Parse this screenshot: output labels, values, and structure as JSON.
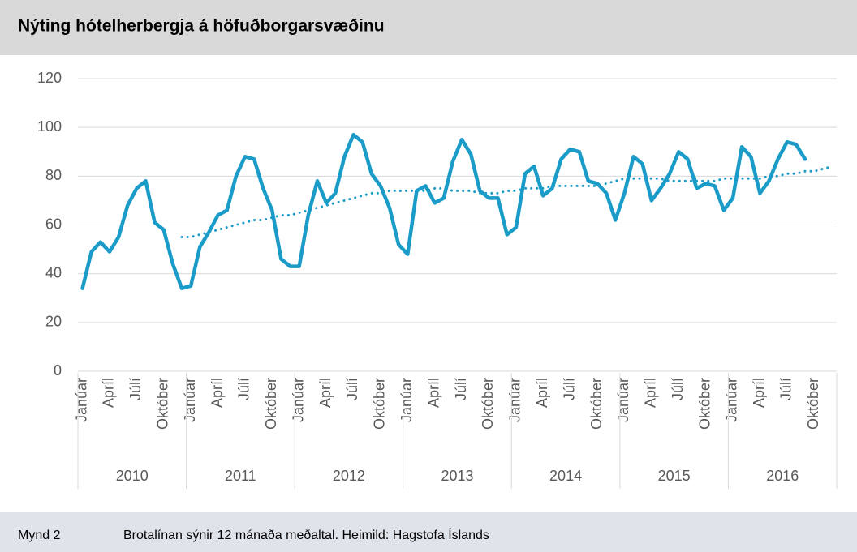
{
  "chart_data": {
    "type": "line",
    "title": "Nýting hótelherbergja á höfuðborgarsvæðinu",
    "categories": [
      "Janúar",
      null,
      null,
      "Apríl",
      null,
      null,
      "Júlí",
      null,
      null,
      "Október",
      null,
      null,
      "Janúar",
      null,
      null,
      "Apríl",
      null,
      null,
      "Júlí",
      null,
      null,
      "Október",
      null,
      null,
      "Janúar",
      null,
      null,
      "Apríl",
      null,
      null,
      "Júlí",
      null,
      null,
      "Október",
      null,
      null,
      "Janúar",
      null,
      null,
      "Apríl",
      null,
      null,
      "Júlí",
      null,
      null,
      "Október",
      null,
      null,
      "Janúar",
      null,
      null,
      "Apríl",
      null,
      null,
      "Júlí",
      null,
      null,
      "Október",
      null,
      null,
      "Janúar",
      null,
      null,
      "Apríl",
      null,
      null,
      "Júlí",
      null,
      null,
      "Október",
      null,
      null,
      "Janúar",
      null,
      null,
      "Apríl",
      null,
      null,
      "Júlí",
      null,
      null,
      "Október",
      null,
      null
    ],
    "years": [
      "2010",
      "2011",
      "2012",
      "2013",
      "2014",
      "2015",
      "2016"
    ],
    "series": [
      {
        "color": "#1b9cc8",
        "style": "solid",
        "values": [
          34,
          49,
          53,
          49,
          55,
          68,
          75,
          78,
          61,
          58,
          44,
          34,
          35,
          51,
          57,
          64,
          66,
          80,
          88,
          87,
          75,
          66,
          46,
          43,
          43,
          64,
          78,
          69,
          73,
          88,
          97,
          94,
          81,
          76,
          67,
          52,
          48,
          74,
          76,
          69,
          71,
          86,
          95,
          89,
          74,
          71,
          71,
          56,
          59,
          81,
          84,
          72,
          75,
          87,
          91,
          90,
          78,
          77,
          73,
          62,
          73,
          88,
          85,
          70,
          75,
          81,
          90,
          87,
          75,
          77,
          76,
          66,
          71,
          92,
          88,
          73,
          78,
          87,
          94,
          93,
          87,
          null,
          null,
          null
        ]
      },
      {
        "color": "#1b9cc8",
        "style": "dotted",
        "values": [
          null,
          null,
          null,
          null,
          null,
          null,
          null,
          null,
          null,
          null,
          null,
          55,
          55,
          56,
          57,
          58,
          59,
          60,
          61,
          62,
          62,
          63,
          64,
          64,
          65,
          66,
          67,
          68,
          69,
          70,
          71,
          72,
          73,
          73,
          74,
          74,
          74,
          74,
          74,
          75,
          75,
          74,
          74,
          74,
          73,
          73,
          73,
          74,
          74,
          75,
          75,
          75,
          76,
          76,
          76,
          76,
          76,
          76,
          77,
          78,
          79,
          79,
          79,
          79,
          79,
          78,
          78,
          78,
          78,
          78,
          78,
          79,
          79,
          79,
          79,
          79,
          80,
          80,
          81,
          81,
          82,
          82,
          83,
          84
        ]
      }
    ],
    "ylim": [
      0,
      120
    ],
    "yticks": [
      0,
      20,
      40,
      60,
      80,
      100,
      120
    ],
    "grid": true,
    "caption_label": "Mynd 2",
    "caption": "Brotalínan sýnir 12 mánaða meðaltal. Heimild: Hagstofa Íslands"
  }
}
